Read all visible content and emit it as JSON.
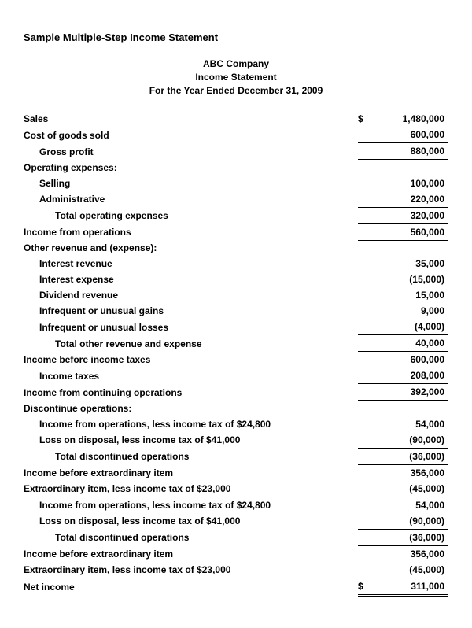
{
  "doc_title": "Sample Multiple-Step Income Statement",
  "header": {
    "company": "ABC Company",
    "report": "Income Statement",
    "period": "For the Year Ended December 31, 2009"
  },
  "rows": [
    {
      "label": "Sales",
      "indent": 0,
      "bold": true,
      "cur": "$",
      "val": "1,480,000",
      "bt": false,
      "bb": false,
      "dbl": false
    },
    {
      "label": "Cost of goods sold",
      "indent": 0,
      "bold": true,
      "cur": "",
      "val": "600,000",
      "bt": false,
      "bb": true,
      "dbl": false
    },
    {
      "label": "Gross profit",
      "indent": 1,
      "bold": true,
      "cur": "",
      "val": "880,000",
      "bt": false,
      "bb": true,
      "dbl": false
    },
    {
      "label": "Operating expenses:",
      "indent": 0,
      "bold": true,
      "cur": "",
      "val": "",
      "bt": false,
      "bb": false,
      "dbl": false
    },
    {
      "label": "Selling",
      "indent": 1,
      "bold": true,
      "cur": "",
      "val": "100,000",
      "bt": false,
      "bb": false,
      "dbl": false
    },
    {
      "label": "Administrative",
      "indent": 1,
      "bold": true,
      "cur": "",
      "val": "220,000",
      "bt": false,
      "bb": true,
      "dbl": false
    },
    {
      "label": "Total operating expenses",
      "indent": 2,
      "bold": true,
      "cur": "",
      "val": "320,000",
      "bt": false,
      "bb": true,
      "dbl": false
    },
    {
      "label": "Income from operations",
      "indent": 0,
      "bold": true,
      "cur": "",
      "val": "560,000",
      "bt": false,
      "bb": true,
      "dbl": false
    },
    {
      "label": "Other revenue and (expense):",
      "indent": 0,
      "bold": true,
      "cur": "",
      "val": "",
      "bt": false,
      "bb": false,
      "dbl": false
    },
    {
      "label": "Interest revenue",
      "indent": 1,
      "bold": true,
      "cur": "",
      "val": "35,000",
      "bt": false,
      "bb": false,
      "dbl": false
    },
    {
      "label": "Interest expense",
      "indent": 1,
      "bold": true,
      "cur": "",
      "val": "(15,000)",
      "bt": false,
      "bb": false,
      "dbl": false
    },
    {
      "label": "Dividend revenue",
      "indent": 1,
      "bold": true,
      "cur": "",
      "val": "15,000",
      "bt": false,
      "bb": false,
      "dbl": false
    },
    {
      "label": "Infrequent or unusual gains",
      "indent": 1,
      "bold": true,
      "cur": "",
      "val": "9,000",
      "bt": false,
      "bb": false,
      "dbl": false
    },
    {
      "label": "Infrequent or unusual losses",
      "indent": 1,
      "bold": true,
      "cur": "",
      "val": "(4,000)",
      "bt": false,
      "bb": true,
      "dbl": false
    },
    {
      "label": "Total other revenue and expense",
      "indent": 2,
      "bold": true,
      "cur": "",
      "val": "40,000",
      "bt": false,
      "bb": true,
      "dbl": false
    },
    {
      "label": "Income before income taxes",
      "indent": 0,
      "bold": true,
      "cur": "",
      "val": "600,000",
      "bt": false,
      "bb": false,
      "dbl": false
    },
    {
      "label": "Income taxes",
      "indent": 1,
      "bold": true,
      "cur": "",
      "val": "208,000",
      "bt": false,
      "bb": true,
      "dbl": false
    },
    {
      "label": "Income from continuing operations",
      "indent": 0,
      "bold": true,
      "cur": "",
      "val": "392,000",
      "bt": false,
      "bb": true,
      "dbl": false
    },
    {
      "label": "Discontinue operations:",
      "indent": 0,
      "bold": true,
      "cur": "",
      "val": "",
      "bt": false,
      "bb": false,
      "dbl": false
    },
    {
      "label": "Income from operations, less income tax of $24,800",
      "indent": 1,
      "bold": true,
      "cur": "",
      "val": "54,000",
      "bt": false,
      "bb": false,
      "dbl": false
    },
    {
      "label": "Loss on disposal, less income tax of $41,000",
      "indent": 1,
      "bold": true,
      "cur": "",
      "val": "(90,000)",
      "bt": false,
      "bb": true,
      "dbl": false
    },
    {
      "label": "Total discontinued operations",
      "indent": 2,
      "bold": true,
      "cur": "",
      "val": "(36,000)",
      "bt": false,
      "bb": true,
      "dbl": false
    },
    {
      "label": "Income before extraordinary item",
      "indent": 0,
      "bold": true,
      "cur": "",
      "val": "356,000",
      "bt": false,
      "bb": false,
      "dbl": false
    },
    {
      "label": "Extraordinary item, less income tax of $23,000",
      "indent": 0,
      "bold": true,
      "cur": "",
      "val": "(45,000)",
      "bt": false,
      "bb": true,
      "dbl": false
    },
    {
      "label": "Income from operations, less income tax of $24,800",
      "indent": 1,
      "bold": true,
      "cur": "",
      "val": "54,000",
      "bt": false,
      "bb": false,
      "dbl": false
    },
    {
      "label": "Loss on disposal, less income tax of $41,000",
      "indent": 1,
      "bold": true,
      "cur": "",
      "val": "(90,000)",
      "bt": false,
      "bb": true,
      "dbl": false
    },
    {
      "label": "Total discontinued operations",
      "indent": 2,
      "bold": true,
      "cur": "",
      "val": "(36,000)",
      "bt": false,
      "bb": true,
      "dbl": false
    },
    {
      "label": "Income before extraordinary item",
      "indent": 0,
      "bold": true,
      "cur": "",
      "val": "356,000",
      "bt": false,
      "bb": false,
      "dbl": false
    },
    {
      "label": "Extraordinary item, less income tax of $23,000",
      "indent": 0,
      "bold": true,
      "cur": "",
      "val": "(45,000)",
      "bt": false,
      "bb": true,
      "dbl": false
    },
    {
      "label": "Net income",
      "indent": 0,
      "bold": true,
      "cur": "$",
      "val": "311,000",
      "bt": false,
      "bb": false,
      "dbl": true
    }
  ]
}
